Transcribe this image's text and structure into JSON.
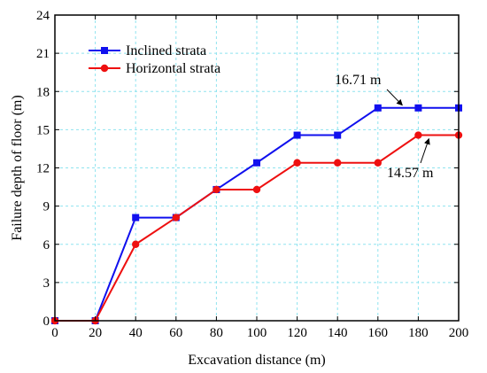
{
  "chart_data": {
    "type": "line",
    "xlabel": "Excavation distance (m)",
    "ylabel": "Failure depth of floor (m)",
    "xlim": [
      0,
      200
    ],
    "ylim": [
      0,
      24
    ],
    "xticks": [
      0,
      20,
      40,
      60,
      80,
      100,
      120,
      140,
      160,
      180,
      200
    ],
    "yticks": [
      0,
      3,
      6,
      9,
      12,
      15,
      18,
      21,
      24
    ],
    "grid": true,
    "legend_position": "top-left",
    "x": [
      0,
      20,
      40,
      60,
      80,
      100,
      120,
      140,
      160,
      180,
      200
    ],
    "series": [
      {
        "name": "Inclined strata",
        "color": "#1010ee",
        "marker": "square",
        "values": [
          0,
          0,
          8.1,
          8.1,
          10.3,
          12.4,
          14.57,
          14.57,
          16.71,
          16.71,
          16.71
        ]
      },
      {
        "name": "Horizontal strata",
        "color": "#ee1010",
        "marker": "circle",
        "values": [
          0,
          0,
          6.0,
          8.1,
          10.3,
          10.3,
          12.4,
          12.4,
          12.4,
          14.57,
          14.57
        ]
      }
    ],
    "annotations": [
      {
        "text": "16.71 m",
        "x": 180,
        "y": 16.71
      },
      {
        "text": "14.57 m",
        "x": 180,
        "y": 14.57
      }
    ]
  }
}
